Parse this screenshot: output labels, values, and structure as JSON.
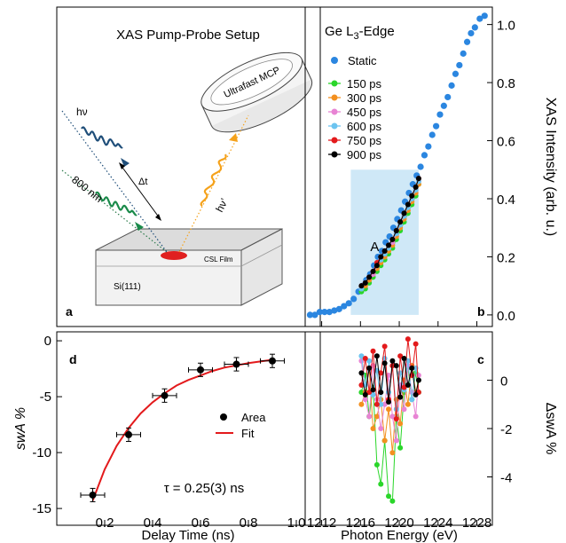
{
  "panels": {
    "a": {
      "letter": "a",
      "title": "XAS Pump-Probe Setup",
      "labels": {
        "hv": "hν",
        "pump": "800 nm",
        "delay": "Δt",
        "hv_prime": "hν’",
        "detector": "Ultrafast MCP",
        "film": "CSL Film",
        "substrate": "Si(111)"
      },
      "colors": {
        "probe": "#1f4e79",
        "pump": "#1a8a4a",
        "emitted": "#f5a21b",
        "spot": "#e02020"
      }
    },
    "b": {
      "letter": "b",
      "title": "Ge L",
      "title_sub": "3",
      "title_suffix": "-Edge",
      "region_label": "A"
    },
    "c": {
      "letter": "c"
    },
    "d": {
      "letter": "d",
      "annotation": "τ = 0.25(3) ns"
    }
  },
  "chart_data": [
    {
      "id": "b",
      "type": "scatter",
      "xlabel": "Photon Energy (eV)",
      "ylabel": "XAS Intensity (arb. u.)",
      "xlim": [
        1210.3,
        1229.6
      ],
      "ylim": [
        -0.04,
        1.06
      ],
      "xticks": [
        1212,
        1216,
        1220,
        1224,
        1228
      ],
      "yticks": [
        0.0,
        0.2,
        0.4,
        0.6,
        0.8,
        1.0
      ],
      "ytick_labels": [
        "0.0",
        "0.2",
        "0.4",
        "0.6",
        "0.8",
        "1.0"
      ],
      "shaded_region": {
        "label": "A",
        "x": [
          1215.0,
          1222.0
        ],
        "y": [
          0.0,
          0.5
        ],
        "color": "#cfe8f7"
      },
      "legend": [
        "Static",
        "150 ps",
        "300 ps",
        "450 ps",
        "600 ps",
        "750 ps",
        "900 ps"
      ],
      "series": [
        {
          "name": "Static",
          "color": "#2b86e0",
          "marker": "dot",
          "x": [
            1210.8,
            1211.3,
            1211.8,
            1212.3,
            1212.8,
            1213.3,
            1213.8,
            1214.3,
            1214.8,
            1215.3,
            1215.8,
            1216.2,
            1216.6,
            1217.0,
            1217.4,
            1217.8,
            1218.2,
            1218.6,
            1219.0,
            1219.4,
            1219.8,
            1220.2,
            1220.6,
            1221.0,
            1221.4,
            1221.8,
            1222.2,
            1222.6,
            1223.0,
            1223.4,
            1223.8,
            1224.2,
            1224.6,
            1225.0,
            1225.4,
            1225.8,
            1226.2,
            1226.6,
            1227.0,
            1227.4,
            1227.8,
            1228.3,
            1228.8
          ],
          "y": [
            0.0,
            0.0,
            0.01,
            0.01,
            0.01,
            0.015,
            0.02,
            0.03,
            0.04,
            0.055,
            0.08,
            0.1,
            0.12,
            0.14,
            0.17,
            0.2,
            0.22,
            0.25,
            0.27,
            0.3,
            0.33,
            0.36,
            0.39,
            0.42,
            0.45,
            0.48,
            0.51,
            0.55,
            0.58,
            0.62,
            0.65,
            0.69,
            0.72,
            0.75,
            0.79,
            0.83,
            0.86,
            0.9,
            0.94,
            0.97,
            0.99,
            1.02,
            1.03
          ]
        },
        {
          "name": "150 ps",
          "color": "#2ad62a",
          "marker": "dot-line",
          "x": [
            1216.1,
            1216.5,
            1216.9,
            1217.3,
            1217.7,
            1218.1,
            1218.5,
            1218.9,
            1219.3,
            1219.7,
            1220.1,
            1220.5,
            1220.9,
            1221.3,
            1221.7,
            1222.0
          ],
          "y": [
            0.08,
            0.09,
            0.11,
            0.13,
            0.15,
            0.17,
            0.19,
            0.21,
            0.23,
            0.26,
            0.29,
            0.32,
            0.35,
            0.38,
            0.41,
            0.45
          ]
        },
        {
          "name": "300 ps",
          "color": "#f39020",
          "marker": "dot-line",
          "x": [
            1216.1,
            1216.5,
            1216.9,
            1217.3,
            1217.7,
            1218.1,
            1218.5,
            1218.9,
            1219.3,
            1219.7,
            1220.1,
            1220.5,
            1220.9,
            1221.3,
            1221.7,
            1222.0
          ],
          "y": [
            0.09,
            0.1,
            0.12,
            0.14,
            0.16,
            0.18,
            0.2,
            0.22,
            0.24,
            0.27,
            0.3,
            0.33,
            0.36,
            0.39,
            0.42,
            0.45
          ]
        },
        {
          "name": "450 ps",
          "color": "#e884d4",
          "marker": "dot-line",
          "x": [
            1216.1,
            1216.5,
            1216.9,
            1217.3,
            1217.7,
            1218.1,
            1218.5,
            1218.9,
            1219.3,
            1219.7,
            1220.1,
            1220.5,
            1220.9,
            1221.3,
            1221.7,
            1222.0
          ],
          "y": [
            0.09,
            0.11,
            0.13,
            0.14,
            0.17,
            0.19,
            0.21,
            0.23,
            0.25,
            0.28,
            0.31,
            0.34,
            0.37,
            0.4,
            0.43,
            0.46
          ]
        },
        {
          "name": "600 ps",
          "color": "#6cc4f0",
          "marker": "dot-line",
          "x": [
            1216.1,
            1216.5,
            1216.9,
            1217.3,
            1217.7,
            1218.1,
            1218.5,
            1218.9,
            1219.3,
            1219.7,
            1220.1,
            1220.5,
            1220.9,
            1221.3,
            1221.7,
            1222.0
          ],
          "y": [
            0.09,
            0.11,
            0.13,
            0.15,
            0.17,
            0.19,
            0.21,
            0.23,
            0.26,
            0.28,
            0.31,
            0.34,
            0.37,
            0.4,
            0.43,
            0.46
          ]
        },
        {
          "name": "750 ps",
          "color": "#e31a1c",
          "marker": "dot-line",
          "x": [
            1216.1,
            1216.5,
            1216.9,
            1217.3,
            1217.7,
            1218.1,
            1218.5,
            1218.9,
            1219.3,
            1219.7,
            1220.1,
            1220.5,
            1220.9,
            1221.3,
            1221.7,
            1222.0
          ],
          "y": [
            0.1,
            0.11,
            0.13,
            0.15,
            0.18,
            0.2,
            0.22,
            0.24,
            0.26,
            0.29,
            0.32,
            0.35,
            0.38,
            0.41,
            0.44,
            0.47
          ]
        },
        {
          "name": "900 ps",
          "color": "#000000",
          "marker": "dot-line",
          "x": [
            1216.1,
            1216.5,
            1216.9,
            1217.3,
            1217.7,
            1218.1,
            1218.5,
            1218.9,
            1219.3,
            1219.7,
            1220.1,
            1220.5,
            1220.9,
            1221.3,
            1221.7,
            1222.0
          ],
          "y": [
            0.1,
            0.11,
            0.13,
            0.15,
            0.17,
            0.2,
            0.22,
            0.24,
            0.26,
            0.29,
            0.32,
            0.35,
            0.38,
            0.41,
            0.44,
            0.47
          ]
        }
      ]
    },
    {
      "id": "c",
      "type": "line",
      "xlabel": "Photon Energy (eV)",
      "ylabel": "ΔswA %",
      "xlim": [
        1210.3,
        1229.6
      ],
      "ylim": [
        -6.0,
        2.0
      ],
      "xticks": [
        1212,
        1216,
        1220,
        1224,
        1228
      ],
      "xtick_labels": [
        "1212",
        "1216",
        "1220",
        "1224",
        "1228"
      ],
      "yticks": [
        0,
        -2,
        -4
      ],
      "ytick_labels": [
        "0",
        "-2",
        "-4"
      ],
      "series": [
        {
          "name": "150 ps",
          "color": "#2ad62a",
          "x": [
            1216.1,
            1216.5,
            1216.9,
            1217.3,
            1217.7,
            1218.1,
            1218.5,
            1218.9,
            1219.3,
            1219.7,
            1220.1,
            1220.5,
            1220.9,
            1221.3,
            1221.7,
            1222.0
          ],
          "y": [
            -0.5,
            0.2,
            -1.5,
            -0.3,
            -3.5,
            -4.3,
            -2.5,
            -4.8,
            -5.0,
            -1.5,
            -2.8,
            -0.5,
            0.5,
            -0.8,
            0.3,
            -0.5
          ]
        },
        {
          "name": "300 ps",
          "color": "#f39020",
          "x": [
            1216.1,
            1216.5,
            1216.9,
            1217.3,
            1217.7,
            1218.1,
            1218.5,
            1218.9,
            1219.3,
            1219.7,
            1220.1,
            1220.5,
            1220.9,
            1221.3,
            1221.7,
            1222.0
          ],
          "y": [
            -1.0,
            -0.5,
            0.5,
            -2.0,
            -1.5,
            -0.8,
            -2.5,
            -1.2,
            -3.0,
            -0.8,
            -1.8,
            0.0,
            -1.0,
            0.6,
            -0.5,
            0.0
          ]
        },
        {
          "name": "450 ps",
          "color": "#e884d4",
          "x": [
            1216.1,
            1216.5,
            1216.9,
            1217.3,
            1217.7,
            1218.1,
            1218.5,
            1218.9,
            1219.3,
            1219.7,
            1220.1,
            1220.5,
            1220.9,
            1221.3,
            1221.7,
            1222.0
          ],
          "y": [
            0.8,
            -0.8,
            -1.5,
            0.6,
            -0.8,
            -2.0,
            -1.0,
            0.2,
            -1.5,
            -2.5,
            -0.2,
            -1.2,
            0.6,
            -0.5,
            -1.5,
            0.2
          ]
        },
        {
          "name": "600 ps",
          "color": "#6cc4f0",
          "x": [
            1216.1,
            1216.5,
            1216.9,
            1217.3,
            1217.7,
            1218.1,
            1218.5,
            1218.9,
            1219.3,
            1219.7,
            1220.1,
            1220.5,
            1220.9,
            1221.3,
            1221.7,
            1222.0
          ],
          "y": [
            1.0,
            -0.2,
            0.8,
            -0.6,
            0.4,
            -1.0,
            0.9,
            -0.5,
            0.6,
            -1.2,
            0.3,
            -0.4,
            0.8,
            -0.8,
            0.5,
            0.0
          ]
        },
        {
          "name": "750 ps",
          "color": "#e31a1c",
          "x": [
            1216.1,
            1216.5,
            1216.9,
            1217.3,
            1217.7,
            1218.1,
            1218.5,
            1218.9,
            1219.3,
            1219.7,
            1220.1,
            1220.5,
            1220.9,
            1221.3,
            1221.7,
            1222.0
          ],
          "y": [
            -0.2,
            0.9,
            -0.5,
            1.2,
            -1.0,
            0.3,
            1.4,
            -0.8,
            0.6,
            -1.6,
            1.0,
            -0.3,
            1.7,
            0.2,
            1.5,
            -0.5
          ]
        },
        {
          "name": "900 ps",
          "color": "#000000",
          "x": [
            1216.1,
            1216.5,
            1216.9,
            1217.3,
            1217.7,
            1218.1,
            1218.5,
            1218.9,
            1219.3,
            1219.7,
            1220.1,
            1220.5,
            1220.9,
            1221.3,
            1221.7,
            1222.0
          ],
          "y": [
            0.3,
            -0.6,
            0.5,
            -0.4,
            1.0,
            -0.5,
            0.7,
            -0.9,
            0.8,
            0.6,
            -0.7,
            0.9,
            -0.2,
            0.5,
            -0.6,
            0.0
          ]
        }
      ]
    },
    {
      "id": "d",
      "type": "scatter",
      "xlabel": "Delay Time (ns)",
      "ylabel": "swA %",
      "xlim": [
        0.0,
        1.1
      ],
      "ylim": [
        -16.5,
        0.8
      ],
      "xticks": [
        0.2,
        0.4,
        0.6,
        0.8,
        1.0
      ],
      "xtick_labels": [
        "0.2",
        "0.4",
        "0.6",
        "0.8",
        "1.0"
      ],
      "yticks": [
        0,
        -5,
        -10,
        -15
      ],
      "ytick_labels": [
        "0",
        "-5",
        "-10",
        "-15"
      ],
      "legend": [
        "Area",
        "Fit"
      ],
      "series": [
        {
          "name": "Area",
          "color": "#000000",
          "marker": "dot-errorbar",
          "x": [
            0.15,
            0.3,
            0.45,
            0.6,
            0.75,
            0.9
          ],
          "y": [
            -13.8,
            -8.4,
            -4.9,
            -2.6,
            -2.1,
            -1.8
          ],
          "xerr": 0.05,
          "yerr": [
            0.6,
            0.6,
            0.6,
            0.6,
            0.6,
            0.6
          ]
        },
        {
          "name": "Fit",
          "color": "#e31a1c",
          "marker": "line",
          "x": [
            0.15,
            0.2,
            0.25,
            0.3,
            0.35,
            0.4,
            0.45,
            0.5,
            0.55,
            0.6,
            0.65,
            0.7,
            0.75,
            0.8,
            0.85,
            0.9
          ],
          "y": [
            -14.3,
            -11.5,
            -9.4,
            -7.8,
            -6.5,
            -5.5,
            -4.7,
            -4.0,
            -3.5,
            -3.1,
            -2.7,
            -2.4,
            -2.2,
            -2.0,
            -1.85,
            -1.7
          ]
        }
      ]
    }
  ]
}
